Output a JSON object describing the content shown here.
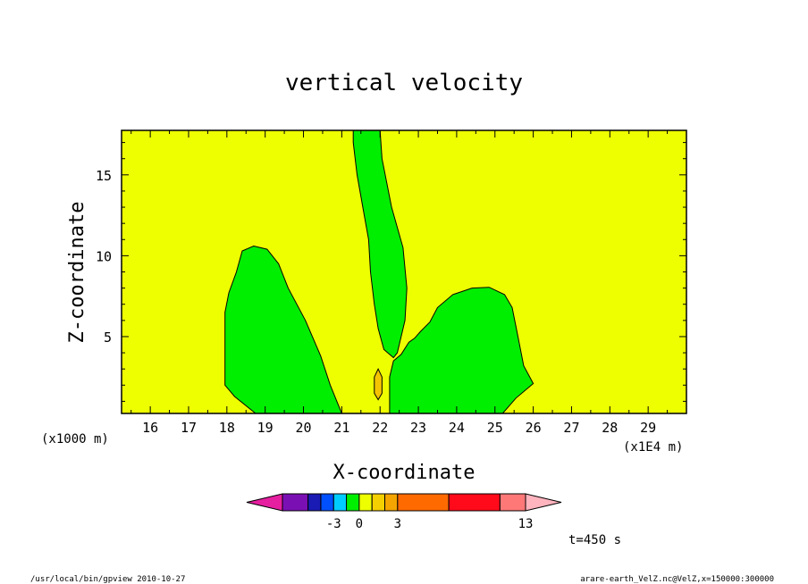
{
  "chart_data": {
    "type": "contour",
    "title": "vertical velocity",
    "xlabel": "X-coordinate",
    "ylabel": "Z-coordinate",
    "x_unit_left": "(x1000 m)",
    "x_unit_right": "(x1E4 m)",
    "xlim": [
      15.25,
      30.0
    ],
    "ylim": [
      0.25,
      17.75
    ],
    "x_ticks": [
      "16",
      "17",
      "18",
      "19",
      "20",
      "21",
      "22",
      "23",
      "24",
      "25",
      "26",
      "27",
      "28",
      "29"
    ],
    "y_ticks": [
      "5",
      "10",
      "15"
    ],
    "grid": false,
    "colors": {
      "background_field": "#eeff00",
      "positive_region": "#00ee00",
      "core": "#f5c400"
    },
    "regions": [
      {
        "name": "left-updraft",
        "points": [
          [
            17.95,
            2.0
          ],
          [
            18.2,
            1.3
          ],
          [
            18.75,
            0.25
          ],
          [
            21.0,
            0.25
          ],
          [
            20.7,
            2.0
          ],
          [
            20.45,
            3.8
          ],
          [
            20.05,
            6.0
          ],
          [
            19.6,
            8.0
          ],
          [
            19.35,
            9.5
          ],
          [
            19.05,
            10.4
          ],
          [
            18.7,
            10.6
          ],
          [
            18.4,
            10.3
          ],
          [
            18.25,
            9.0
          ],
          [
            18.05,
            7.7
          ],
          [
            17.95,
            6.5
          ],
          [
            17.95,
            5.0
          ],
          [
            17.95,
            3.0
          ]
        ]
      },
      {
        "name": "right-updraft",
        "points": [
          [
            22.25,
            0.25
          ],
          [
            25.2,
            0.25
          ],
          [
            25.55,
            1.2
          ],
          [
            26.0,
            2.1
          ],
          [
            25.75,
            3.2
          ],
          [
            25.6,
            5.0
          ],
          [
            25.45,
            6.8
          ],
          [
            25.25,
            7.6
          ],
          [
            24.85,
            8.05
          ],
          [
            24.4,
            8.0
          ],
          [
            23.9,
            7.6
          ],
          [
            23.5,
            6.8
          ],
          [
            23.3,
            5.9
          ],
          [
            23.05,
            5.3
          ],
          [
            22.9,
            4.9
          ],
          [
            22.75,
            4.65
          ],
          [
            22.55,
            3.9
          ],
          [
            22.35,
            3.5
          ],
          [
            22.25,
            2.5
          ],
          [
            22.25,
            1.0
          ]
        ]
      },
      {
        "name": "central-plume",
        "points": [
          [
            21.3,
            17.75
          ],
          [
            22.0,
            17.75
          ],
          [
            22.05,
            16.0
          ],
          [
            22.3,
            13.0
          ],
          [
            22.6,
            10.5
          ],
          [
            22.7,
            8.0
          ],
          [
            22.65,
            6.0
          ],
          [
            22.55,
            5.0
          ],
          [
            22.45,
            4.0
          ],
          [
            22.35,
            3.7
          ],
          [
            22.1,
            4.2
          ],
          [
            21.95,
            5.5
          ],
          [
            21.85,
            7.0
          ],
          [
            21.75,
            9.0
          ],
          [
            21.7,
            11.0
          ],
          [
            21.55,
            13.0
          ],
          [
            21.4,
            15.0
          ],
          [
            21.3,
            17.0
          ]
        ]
      },
      {
        "name": "core-spot",
        "points": [
          [
            21.95,
            3.0
          ],
          [
            22.05,
            2.5
          ],
          [
            22.05,
            1.5
          ],
          [
            21.95,
            1.1
          ],
          [
            21.85,
            1.5
          ],
          [
            21.85,
            2.5
          ]
        ]
      }
    ],
    "colorbar": {
      "colors": [
        "#e61ea0",
        "#7a10b4",
        "#1a1ab4",
        "#0050ff",
        "#00ccff",
        "#00ee00",
        "#eeff00",
        "#f5d000",
        "#f5a500",
        "#ff6a00",
        "#ff0a1a",
        "#ff7878",
        "#ffb4be"
      ],
      "widths": [
        1,
        1,
        0.5,
        0.5,
        0.5,
        0.5,
        0.5,
        0.5,
        0.5,
        2,
        2,
        1,
        1
      ],
      "tick_labels": [
        "-3",
        "0",
        "3",
        "13"
      ],
      "tick_after_segment": [
        3,
        5,
        8,
        11
      ]
    }
  },
  "annotations": {
    "time": "t=450 s",
    "footer_left": "/usr/local/bin/gpview  2010-10-27",
    "footer_right": "arare-earth_VelZ.nc@VelZ,x=150000:300000"
  }
}
